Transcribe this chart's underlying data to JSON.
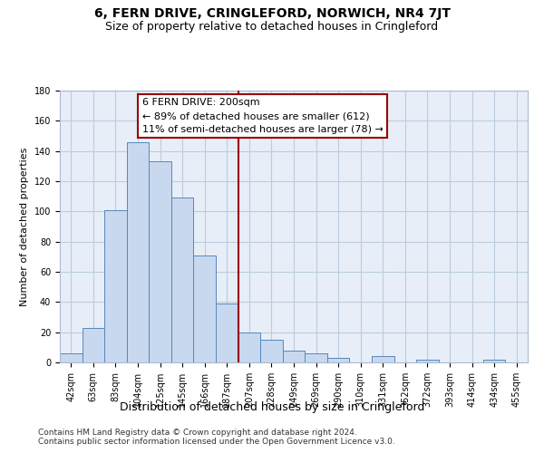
{
  "title": "6, FERN DRIVE, CRINGLEFORD, NORWICH, NR4 7JT",
  "subtitle": "Size of property relative to detached houses in Cringleford",
  "xlabel": "Distribution of detached houses by size in Cringleford",
  "ylabel": "Number of detached properties",
  "categories": [
    "42sqm",
    "63sqm",
    "83sqm",
    "104sqm",
    "125sqm",
    "145sqm",
    "166sqm",
    "187sqm",
    "207sqm",
    "228sqm",
    "249sqm",
    "269sqm",
    "290sqm",
    "310sqm",
    "331sqm",
    "352sqm",
    "372sqm",
    "393sqm",
    "414sqm",
    "434sqm",
    "455sqm"
  ],
  "values": [
    6,
    23,
    101,
    146,
    133,
    109,
    71,
    39,
    20,
    15,
    8,
    6,
    3,
    0,
    4,
    0,
    2,
    0,
    0,
    2,
    0
  ],
  "bar_color": "#c8d8ee",
  "bar_edge_color": "#5588bb",
  "vline_x_index": 7.5,
  "vline_color": "#990000",
  "annotation_line1": "6 FERN DRIVE: 200sqm",
  "annotation_line2": "← 89% of detached houses are smaller (612)",
  "annotation_line3": "11% of semi-detached houses are larger (78) →",
  "annotation_box_edgecolor": "#990000",
  "ylim": [
    0,
    180
  ],
  "yticks": [
    0,
    20,
    40,
    60,
    80,
    100,
    120,
    140,
    160,
    180
  ],
  "grid_color": "#bbccdd",
  "bg_color": "#e8eef8",
  "footer1": "Contains HM Land Registry data © Crown copyright and database right 2024.",
  "footer2": "Contains public sector information licensed under the Open Government Licence v3.0.",
  "title_fontsize": 10,
  "subtitle_fontsize": 9,
  "xlabel_fontsize": 9,
  "ylabel_fontsize": 8,
  "tick_fontsize": 7,
  "annot_fontsize": 8,
  "footer_fontsize": 6.5
}
